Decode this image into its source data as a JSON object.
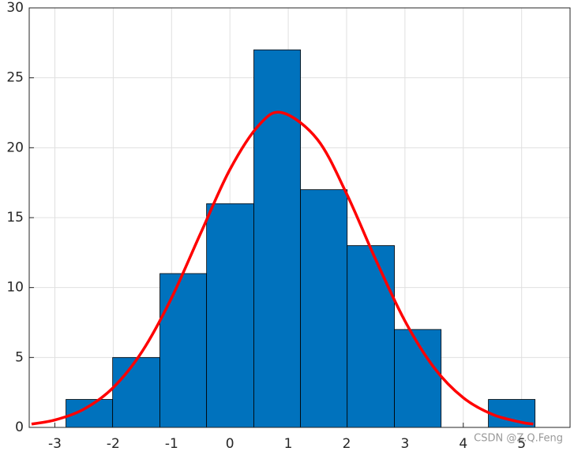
{
  "chart_data": [
    {
      "type": "histogram",
      "bins": [
        -2.81,
        -2.01,
        -1.2,
        -0.4,
        0.41,
        1.21,
        2.01,
        2.82,
        3.62,
        4.43,
        5.23
      ],
      "values": [
        2,
        5,
        11,
        16,
        27,
        17,
        13,
        7,
        0,
        2
      ],
      "color": "#0072bd",
      "xlim": [
        -3.44,
        5.83
      ],
      "xticks": [
        -3,
        -2,
        -1,
        0,
        1,
        2,
        3,
        4,
        5
      ],
      "ylim": [
        0,
        30
      ],
      "yticks": [
        0,
        5,
        10,
        15,
        20,
        25,
        30
      ],
      "grid": true,
      "annotation": "CSDN @Z.Q.Feng"
    },
    {
      "type": "line",
      "x": [
        -3.4,
        -3,
        -2.5,
        -2,
        -1.5,
        -1,
        -0.5,
        0,
        0.5,
        0.9,
        1.5,
        2,
        2.5,
        3,
        3.5,
        4,
        4.5,
        5,
        5.2
      ],
      "values": [
        0.24,
        0.53,
        1.31,
        2.85,
        5.46,
        9.26,
        13.9,
        18.44,
        21.63,
        22.5,
        20.59,
        16.71,
        11.99,
        7.61,
        4.27,
        2.12,
        0.93,
        0.36,
        0.24
      ],
      "color": "#ff0000"
    }
  ]
}
